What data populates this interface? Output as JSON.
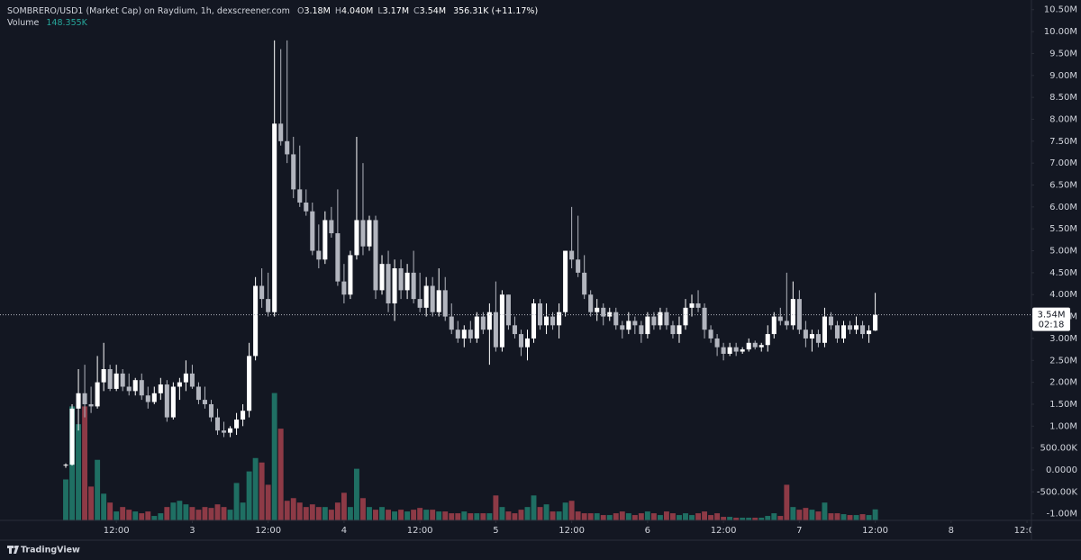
{
  "chart_data": {
    "type": "candlestick",
    "title": "SOMBRERO/USD1 (Market Cap) on Raydium, 1h, dexscreener.com",
    "ohlc_fields": [
      {
        "key": "O",
        "value": "3.18M"
      },
      {
        "key": "H",
        "value": "4.040M"
      },
      {
        "key": "L",
        "value": "3.17M"
      },
      {
        "key": "C",
        "value": "3.54M"
      }
    ],
    "change": "356.31K (+11.17%)",
    "volume_title": "Volume",
    "volume_value": "148.355K",
    "last_price_label": "3.54M",
    "countdown": "02:18",
    "watermark": "TradingView",
    "up_color": "#ffffff",
    "down_color": "#b2b5be",
    "volume_up_color": "#1f6f63",
    "volume_down_color": "#8d3a46",
    "grid": false,
    "xlim": [
      -10.4,
      152.7
    ],
    "xticks": [
      {
        "value": 8,
        "label": "12:00"
      },
      {
        "value": 20,
        "label": "3"
      },
      {
        "value": 32,
        "label": "12:00"
      },
      {
        "value": 44,
        "label": "4"
      },
      {
        "value": 56,
        "label": "12:00"
      },
      {
        "value": 68,
        "label": "5"
      },
      {
        "value": 80,
        "label": "12:00"
      },
      {
        "value": 92,
        "label": "6"
      },
      {
        "value": 104,
        "label": "12:00"
      },
      {
        "value": 116,
        "label": "7"
      },
      {
        "value": 128,
        "label": "12:00"
      },
      {
        "value": 140,
        "label": "8"
      },
      {
        "value": 152,
        "label": "12:00"
      }
    ],
    "ylim": [
      -1150000,
      10700000
    ],
    "yticks": [
      {
        "value": 10500000,
        "label": "10.50M"
      },
      {
        "value": 10000000,
        "label": "10.00M"
      },
      {
        "value": 9500000,
        "label": "9.50M"
      },
      {
        "value": 9000000,
        "label": "9.00M"
      },
      {
        "value": 8500000,
        "label": "8.50M"
      },
      {
        "value": 8000000,
        "label": "8.00M"
      },
      {
        "value": 7500000,
        "label": "7.50M"
      },
      {
        "value": 7000000,
        "label": "7.00M"
      },
      {
        "value": 6500000,
        "label": "6.50M"
      },
      {
        "value": 6000000,
        "label": "6.00M"
      },
      {
        "value": 5500000,
        "label": "5.50M"
      },
      {
        "value": 5000000,
        "label": "5.00M"
      },
      {
        "value": 4500000,
        "label": "4.50M"
      },
      {
        "value": 4000000,
        "label": "4.00M"
      },
      {
        "value": 3500000,
        "label": "3.50M"
      },
      {
        "value": 3000000,
        "label": "3.00M"
      },
      {
        "value": 2500000,
        "label": "2.50M"
      },
      {
        "value": 2000000,
        "label": "2.00M"
      },
      {
        "value": 1500000,
        "label": "1.50M"
      },
      {
        "value": 1000000,
        "label": "1.00M"
      },
      {
        "value": 500000,
        "label": "500.00K"
      },
      {
        "value": 0,
        "label": "0.0000"
      },
      {
        "value": -500000,
        "label": "-500.00K"
      },
      {
        "value": -1000000,
        "label": "-1.00M"
      }
    ],
    "vlim": [
      0,
      7000000
    ],
    "open": [
      100000,
      120000,
      1400000,
      1750000,
      1500000,
      1450000,
      2000000,
      2300000,
      1850000,
      2200000,
      1900000,
      1800000,
      2050000,
      1700000,
      1550000,
      1750000,
      1950000,
      1200000,
      1900000,
      2000000,
      2200000,
      1900000,
      1600000,
      1500000,
      1200000,
      900000,
      850000,
      950000,
      1150000,
      1350000,
      2600000,
      4200000,
      3900000,
      3600000,
      7900000,
      7500000,
      7200000,
      6400000,
      6100000,
      5900000,
      5000000,
      4800000,
      5700000,
      5400000,
      4300000,
      4000000,
      4900000,
      5700000,
      5100000,
      5700000,
      4100000,
      4700000,
      3800000,
      4600000,
      4100000,
      4500000,
      3900000,
      3700000,
      4200000,
      3600000,
      4100000,
      3500000,
      3200000,
      3000000,
      3200000,
      3000000,
      3500000,
      3200000,
      3600000,
      2800000,
      4000000,
      3300000,
      3100000,
      2800000,
      3000000,
      3800000,
      3300000,
      3500000,
      3300000,
      3600000,
      5000000,
      4800000,
      4500000,
      4000000,
      3600000,
      3700000,
      3500000,
      3600000,
      3300000,
      3200000,
      3400000,
      3300000,
      3100000,
      3500000,
      3300000,
      3600000,
      3300000,
      3100000,
      3300000,
      3700000,
      3800000,
      3700000,
      3200000,
      3000000,
      2800000,
      2650000,
      2800000,
      2700000,
      2750000,
      2900000,
      2800000,
      2850000,
      3100000,
      3500000,
      3400000,
      3300000,
      3900000,
      3200000,
      3000000,
      3100000,
      2900000,
      3500000,
      3300000,
      3000000,
      3300000,
      3200000,
      3300000,
      3100000,
      3180000
    ],
    "high": [
      150000,
      1500000,
      2300000,
      2400000,
      1900000,
      2600000,
      2900000,
      2400000,
      2400000,
      2300000,
      2200000,
      2100000,
      2200000,
      1900000,
      1900000,
      2100000,
      2050000,
      2000000,
      2100000,
      2500000,
      2400000,
      2000000,
      1900000,
      1600000,
      1400000,
      1100000,
      1000000,
      1300000,
      1500000,
      2900000,
      4400000,
      4600000,
      4500000,
      9800000,
      9600000,
      9800000,
      7600000,
      7400000,
      6400000,
      6100000,
      5600000,
      5900000,
      6000000,
      6400000,
      4700000,
      5000000,
      7600000,
      7000000,
      5800000,
      5800000,
      4900000,
      5000000,
      4800000,
      4800000,
      4700000,
      5000000,
      4500000,
      4400000,
      4400000,
      4600000,
      4400000,
      3800000,
      3400000,
      3300000,
      3400000,
      3600000,
      3600000,
      3800000,
      4300000,
      4100000,
      4000000,
      3500000,
      3200000,
      3200000,
      3900000,
      3900000,
      3800000,
      3600000,
      3800000,
      5000000,
      6000000,
      5800000,
      4900000,
      4100000,
      3900000,
      3800000,
      3700000,
      3700000,
      3400000,
      3600000,
      3500000,
      3400000,
      3600000,
      3600000,
      3700000,
      3700000,
      3400000,
      3500000,
      3900000,
      4000000,
      4100000,
      3800000,
      3300000,
      3100000,
      2900000,
      2900000,
      2900000,
      2800000,
      3000000,
      2950000,
      2900000,
      3300000,
      3600000,
      3700000,
      4500000,
      4300000,
      4100000,
      3400000,
      3200000,
      3200000,
      3700000,
      3600000,
      3400000,
      3400000,
      3400000,
      3500000,
      3400000,
      3300000,
      4040000
    ],
    "low": [
      50000,
      100000,
      900000,
      1200000,
      1300000,
      1400000,
      1800000,
      1800000,
      1800000,
      1800000,
      1700000,
      1700000,
      1600000,
      1400000,
      1500000,
      1600000,
      1100000,
      1150000,
      1600000,
      1800000,
      1850000,
      1500000,
      1400000,
      1100000,
      800000,
      750000,
      750000,
      800000,
      1000000,
      1200000,
      2500000,
      3700000,
      3500000,
      3500000,
      7400000,
      7000000,
      6200000,
      6000000,
      5800000,
      4900000,
      4600000,
      4700000,
      5300000,
      4200000,
      3800000,
      3900000,
      4800000,
      4900000,
      5000000,
      3900000,
      4000000,
      3600000,
      3400000,
      3900000,
      3900000,
      3800000,
      3600000,
      3500000,
      3500000,
      3500000,
      3400000,
      3100000,
      2900000,
      2800000,
      2900000,
      2900000,
      3100000,
      2400000,
      2700000,
      2700000,
      3200000,
      3000000,
      2600000,
      2500000,
      2900000,
      3200000,
      3100000,
      3200000,
      3000000,
      3500000,
      4600000,
      4400000,
      3900000,
      3500000,
      3400000,
      3300000,
      3400000,
      3200000,
      3000000,
      3100000,
      3100000,
      2900000,
      3000000,
      3200000,
      3200000,
      3200000,
      3000000,
      2900000,
      3200000,
      3500000,
      3600000,
      3000000,
      2900000,
      2600000,
      2500000,
      2600000,
      2600000,
      2650000,
      2700000,
      2750000,
      2700000,
      2700000,
      3000000,
      3300000,
      3200000,
      3200000,
      3100000,
      2800000,
      2700000,
      2800000,
      2800000,
      3200000,
      2900000,
      2900000,
      3100000,
      3100000,
      3000000,
      2900000,
      3170000
    ],
    "close": [
      120000,
      1400000,
      1750000,
      1500000,
      1450000,
      2000000,
      2300000,
      1850000,
      2200000,
      1900000,
      1800000,
      2050000,
      1700000,
      1550000,
      1750000,
      1950000,
      1200000,
      1900000,
      2000000,
      2200000,
      1900000,
      1600000,
      1500000,
      1200000,
      900000,
      850000,
      950000,
      1150000,
      1350000,
      2600000,
      4200000,
      3900000,
      3600000,
      7900000,
      7500000,
      7200000,
      6400000,
      6100000,
      5900000,
      5000000,
      4800000,
      5700000,
      5400000,
      4300000,
      4000000,
      4900000,
      5700000,
      5100000,
      5700000,
      4100000,
      4700000,
      3800000,
      4600000,
      4100000,
      4500000,
      3900000,
      3700000,
      4200000,
      3600000,
      4100000,
      3500000,
      3200000,
      3000000,
      3200000,
      3000000,
      3500000,
      3200000,
      3600000,
      2800000,
      4000000,
      3300000,
      3100000,
      2800000,
      3000000,
      3800000,
      3300000,
      3500000,
      3300000,
      3600000,
      5000000,
      4800000,
      4500000,
      4000000,
      3600000,
      3700000,
      3500000,
      3600000,
      3300000,
      3200000,
      3400000,
      3300000,
      3100000,
      3500000,
      3300000,
      3600000,
      3300000,
      3100000,
      3300000,
      3700000,
      3800000,
      3700000,
      3200000,
      3000000,
      2800000,
      2650000,
      2800000,
      2700000,
      2750000,
      2900000,
      2800000,
      2850000,
      3100000,
      3500000,
      3400000,
      3300000,
      3900000,
      3200000,
      3000000,
      3100000,
      2900000,
      3500000,
      3300000,
      3000000,
      3300000,
      3200000,
      3300000,
      3100000,
      3180000,
      3540000
    ],
    "volume": [
      552000,
      1536000,
      1296000,
      1536000,
      456000,
      816000,
      360000,
      240000,
      120000,
      180000,
      144000,
      120000,
      96000,
      120000,
      60000,
      96000,
      180000,
      240000,
      264000,
      216000,
      180000,
      144000,
      180000,
      168000,
      216000,
      180000,
      144000,
      504000,
      240000,
      660000,
      840000,
      780000,
      480000,
      1716000,
      1236000,
      264000,
      300000,
      240000,
      180000,
      216000,
      180000,
      180000,
      144000,
      240000,
      372000,
      180000,
      696000,
      300000,
      180000,
      144000,
      180000,
      144000,
      120000,
      144000,
      120000,
      144000,
      168000,
      144000,
      144000,
      120000,
      120000,
      96000,
      96000,
      120000,
      96000,
      96000,
      96000,
      96000,
      336000,
      180000,
      120000,
      96000,
      144000,
      180000,
      336000,
      180000,
      216000,
      120000,
      120000,
      240000,
      264000,
      120000,
      96000,
      96000,
      96000,
      72000,
      72000,
      96000,
      120000,
      96000,
      72000,
      96000,
      120000,
      96000,
      72000,
      120000,
      96000,
      72000,
      96000,
      72000,
      96000,
      120000,
      72000,
      96000,
      48000,
      48000,
      36000,
      36000,
      36000,
      36000,
      36000,
      60000,
      96000,
      60000,
      480000,
      180000,
      144000,
      168000,
      144000,
      120000,
      240000,
      96000,
      96000,
      84000,
      72000,
      72000,
      84000,
      72000,
      148355
    ]
  }
}
